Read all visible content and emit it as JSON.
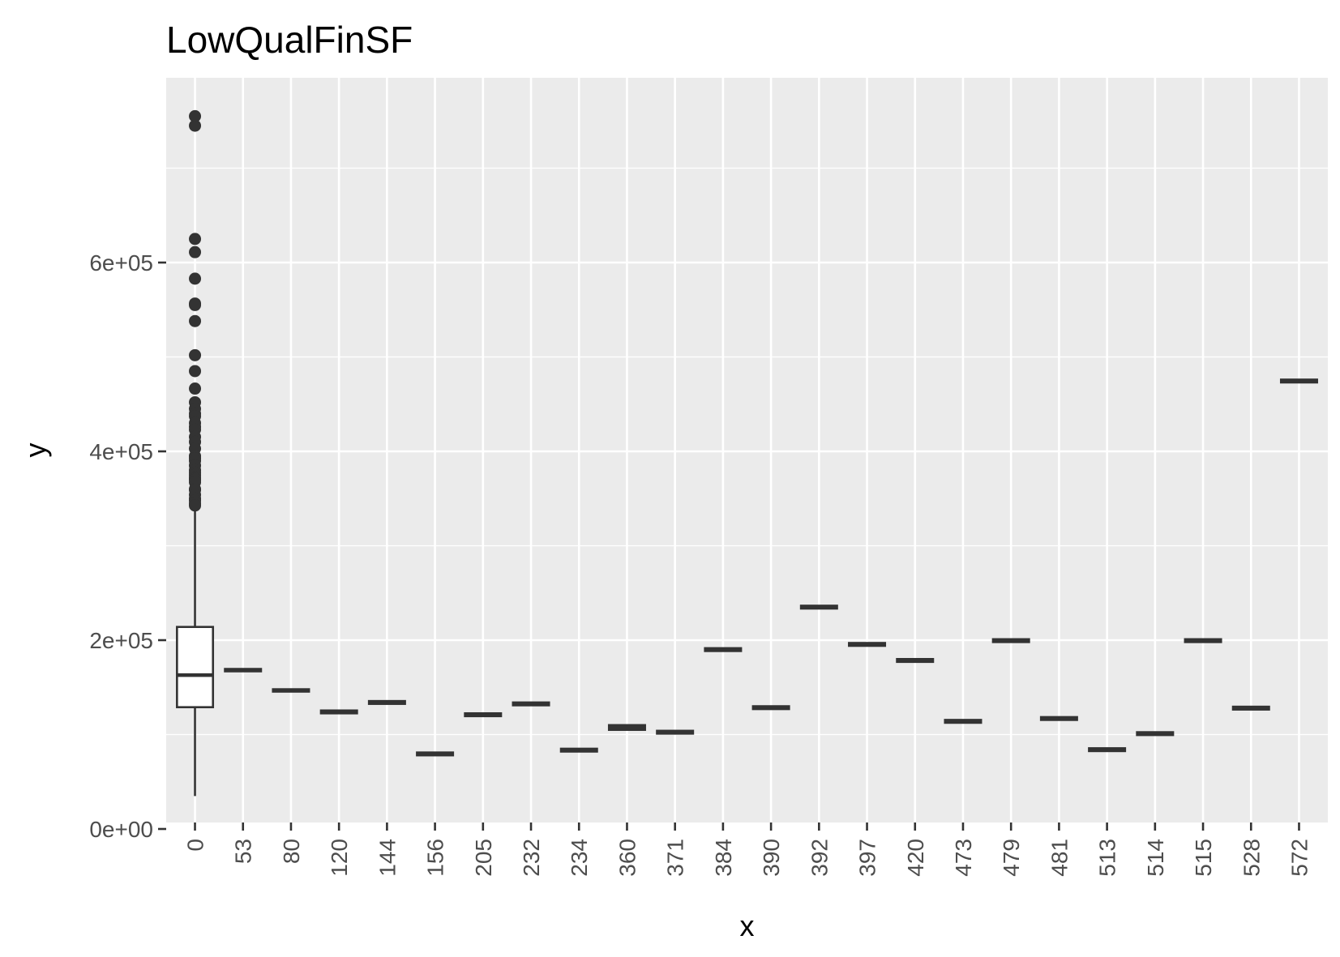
{
  "chart_data": {
    "type": "boxplot",
    "title": "LowQualFinSF",
    "xlabel": "x",
    "ylabel": "y",
    "x_tick_rotation": "vertical",
    "y_ticks": [
      0,
      200000,
      400000,
      600000
    ],
    "y_tick_labels": [
      "0e+00",
      "2e+05",
      "4e+05",
      "6e+05"
    ],
    "ylim": [
      0,
      755000
    ],
    "grid": true,
    "colors": {
      "panel": "#ebebeb",
      "grid": "#ffffff",
      "box_line": "#333333",
      "box_fill": "#ffffff",
      "tick_label": "#4d4d4d"
    },
    "categories": [
      "0",
      "53",
      "80",
      "120",
      "144",
      "156",
      "205",
      "232",
      "234",
      "360",
      "371",
      "384",
      "390",
      "392",
      "397",
      "420",
      "473",
      "479",
      "481",
      "513",
      "514",
      "515",
      "528",
      "572"
    ],
    "boxes": [
      {
        "x": "0",
        "q1": 129000,
        "median": 163000,
        "q3": 214000,
        "whisker_low": 34900,
        "whisker_high": 340000,
        "outliers": [
          745000,
          755000,
          625000,
          611000,
          582933,
          556581,
          555000,
          538000,
          501837,
          485000,
          466500,
          451950,
          445000,
          440000,
          437154,
          430000,
          426000,
          423000,
          415298,
          410000,
          402861,
          395000,
          392500,
          390000,
          385000,
          380000,
          377500,
          375000,
          372500,
          370878,
          369900,
          367294,
          360000,
          359100,
          354000,
          350000,
          348000,
          345000,
          342643
        ]
      },
      {
        "x": "53",
        "q1": 167000,
        "median": 168500,
        "q3": 169500
      },
      {
        "x": "80",
        "q1": 145500,
        "median": 147000,
        "q3": 148000
      },
      {
        "x": "120",
        "q1": 122500,
        "median": 124000,
        "q3": 125500
      },
      {
        "x": "144",
        "q1": 132500,
        "median": 134000,
        "q3": 135500
      },
      {
        "x": "156",
        "q1": 78000,
        "median": 79500,
        "q3": 81000
      },
      {
        "x": "205",
        "q1": 119500,
        "median": 121000,
        "q3": 122500
      },
      {
        "x": "232",
        "q1": 131000,
        "median": 132500,
        "q3": 134000
      },
      {
        "x": "234",
        "q1": 82000,
        "median": 83500,
        "q3": 85000
      },
      {
        "x": "360",
        "q1": 105000,
        "median": 107500,
        "q3": 110000
      },
      {
        "x": "371",
        "q1": 101000,
        "median": 102500,
        "q3": 104000
      },
      {
        "x": "384",
        "q1": 188500,
        "median": 190000,
        "q3": 191500
      },
      {
        "x": "390",
        "q1": 127000,
        "median": 128500,
        "q3": 130000
      },
      {
        "x": "392",
        "q1": 233500,
        "median": 235000,
        "q3": 236500
      },
      {
        "x": "397",
        "q1": 194000,
        "median": 195500,
        "q3": 197000
      },
      {
        "x": "420",
        "q1": 177000,
        "median": 178500,
        "q3": 180000
      },
      {
        "x": "473",
        "q1": 112500,
        "median": 114000,
        "q3": 115500
      },
      {
        "x": "479",
        "q1": 198000,
        "median": 199500,
        "q3": 201000
      },
      {
        "x": "481",
        "q1": 115500,
        "median": 117000,
        "q3": 118500
      },
      {
        "x": "513",
        "q1": 82500,
        "median": 84000,
        "q3": 85500
      },
      {
        "x": "514",
        "q1": 99500,
        "median": 101000,
        "q3": 102500
      },
      {
        "x": "515",
        "q1": 198000,
        "median": 199500,
        "q3": 201000
      },
      {
        "x": "528",
        "q1": 126500,
        "median": 128000,
        "q3": 129500
      },
      {
        "x": "572",
        "q1": 473000,
        "median": 474500,
        "q3": 476000
      }
    ]
  }
}
